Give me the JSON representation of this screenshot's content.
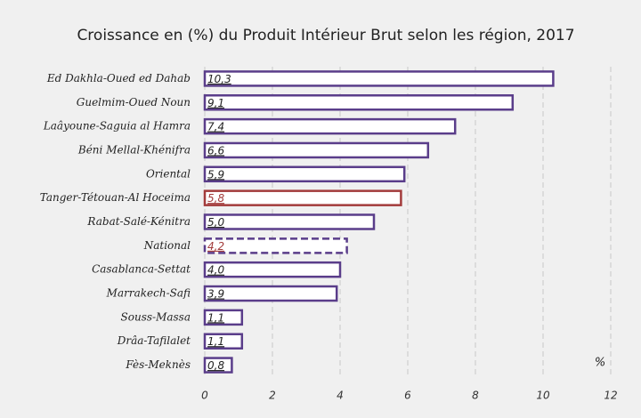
{
  "chart_data": {
    "type": "barh",
    "title": "Croissance en (%) du Produit Intérieur Brut selon les région, 2017",
    "categories": [
      "Ed Dakhla-Oued ed Dahab",
      "Guelmim-Oued Noun",
      "Laâyoune-Saguia al Hamra",
      "Béni Mellal-Khénifra",
      "Oriental",
      "Tanger-Tétouan-Al Hoceima",
      "Rabat-Salé-Kénitra",
      "National",
      "Casablanca-Settat",
      "Marrakech-Safi",
      "Souss-Massa",
      "Drâa-Tafilalet",
      "Fès-Meknès"
    ],
    "values": [
      10.3,
      9.1,
      7.4,
      6.6,
      5.9,
      5.8,
      5.0,
      4.2,
      4.0,
      3.9,
      1.1,
      1.1,
      0.8
    ],
    "value_labels": [
      "10,3",
      "9,1",
      "7,4",
      "6,6",
      "5,9",
      "5,8",
      "5,0",
      "4,2",
      "4,0",
      "3,9",
      "1,1",
      "1,1",
      "0,8"
    ],
    "colors": [
      "#5a3d8a",
      "#5a3d8a",
      "#5a3d8a",
      "#5a3d8a",
      "#5a3d8a",
      "#a33b3b",
      "#5a3d8a",
      "#5a3d8a",
      "#5a3d8a",
      "#5a3d8a",
      "#5a3d8a",
      "#5a3d8a",
      "#5a3d8a"
    ],
    "label_colors": [
      "#222222",
      "#222222",
      "#222222",
      "#222222",
      "#222222",
      "#a33b3b",
      "#222222",
      "#a33b3b",
      "#222222",
      "#222222",
      "#222222",
      "#222222",
      "#222222"
    ],
    "line_styles": [
      "solid",
      "solid",
      "solid",
      "solid",
      "solid",
      "solid",
      "solid",
      "dashed",
      "solid",
      "solid",
      "solid",
      "solid",
      "solid"
    ],
    "xlim": [
      0,
      12
    ],
    "xticks": [
      0,
      2,
      4,
      6,
      8,
      10,
      12
    ],
    "grid": true,
    "annotation": "%"
  }
}
